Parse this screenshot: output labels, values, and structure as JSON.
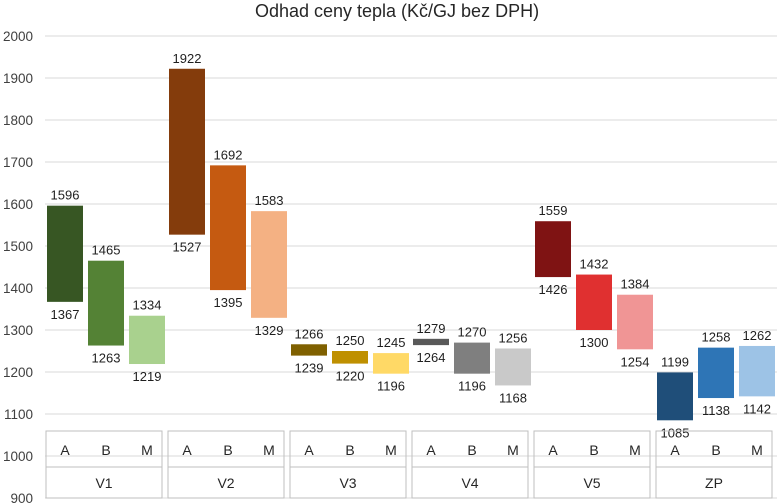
{
  "chart_data": {
    "type": "floating-bar",
    "title": "Odhad ceny tepla (Kč/GJ bez DPH)",
    "ylim": [
      900,
      2000
    ],
    "yticks": [
      900,
      1000,
      1100,
      1200,
      1300,
      1400,
      1500,
      1600,
      1700,
      1800,
      1900,
      2000
    ],
    "grid": true,
    "legend": "none",
    "groups": [
      {
        "name": "V1",
        "bars": [
          {
            "label": "A",
            "low": 1367,
            "high": 1596,
            "color": "#375623"
          },
          {
            "label": "B",
            "low": 1263,
            "high": 1465,
            "color": "#548235"
          },
          {
            "label": "M",
            "low": 1219,
            "high": 1334,
            "color": "#A9D18E"
          }
        ]
      },
      {
        "name": "V2",
        "bars": [
          {
            "label": "A",
            "low": 1527,
            "high": 1922,
            "color": "#843C0C"
          },
          {
            "label": "B",
            "low": 1395,
            "high": 1692,
            "color": "#C55A11"
          },
          {
            "label": "M",
            "low": 1329,
            "high": 1583,
            "color": "#F4B183"
          }
        ]
      },
      {
        "name": "V3",
        "bars": [
          {
            "label": "A",
            "low": 1239,
            "high": 1266,
            "color": "#7F6000"
          },
          {
            "label": "B",
            "low": 1220,
            "high": 1250,
            "color": "#BF9000"
          },
          {
            "label": "M",
            "low": 1196,
            "high": 1245,
            "color": "#FFD966"
          }
        ]
      },
      {
        "name": "V4",
        "bars": [
          {
            "label": "A",
            "low": 1264,
            "high": 1279,
            "color": "#595959"
          },
          {
            "label": "B",
            "low": 1196,
            "high": 1270,
            "color": "#7F7F7F"
          },
          {
            "label": "M",
            "low": 1168,
            "high": 1256,
            "color": "#C9C9C9"
          }
        ]
      },
      {
        "name": "V5",
        "bars": [
          {
            "label": "A",
            "low": 1426,
            "high": 1559,
            "color": "#7F1313"
          },
          {
            "label": "B",
            "low": 1300,
            "high": 1432,
            "color": "#E03030"
          },
          {
            "label": "M",
            "low": 1254,
            "high": 1384,
            "color": "#F09595"
          }
        ]
      },
      {
        "name": "ZP",
        "bars": [
          {
            "label": "A",
            "low": 1085,
            "high": 1199,
            "color": "#1F4E79"
          },
          {
            "label": "B",
            "low": 1138,
            "high": 1258,
            "color": "#2E75B6"
          },
          {
            "label": "M",
            "low": 1142,
            "high": 1262,
            "color": "#9DC3E6"
          }
        ]
      }
    ]
  }
}
